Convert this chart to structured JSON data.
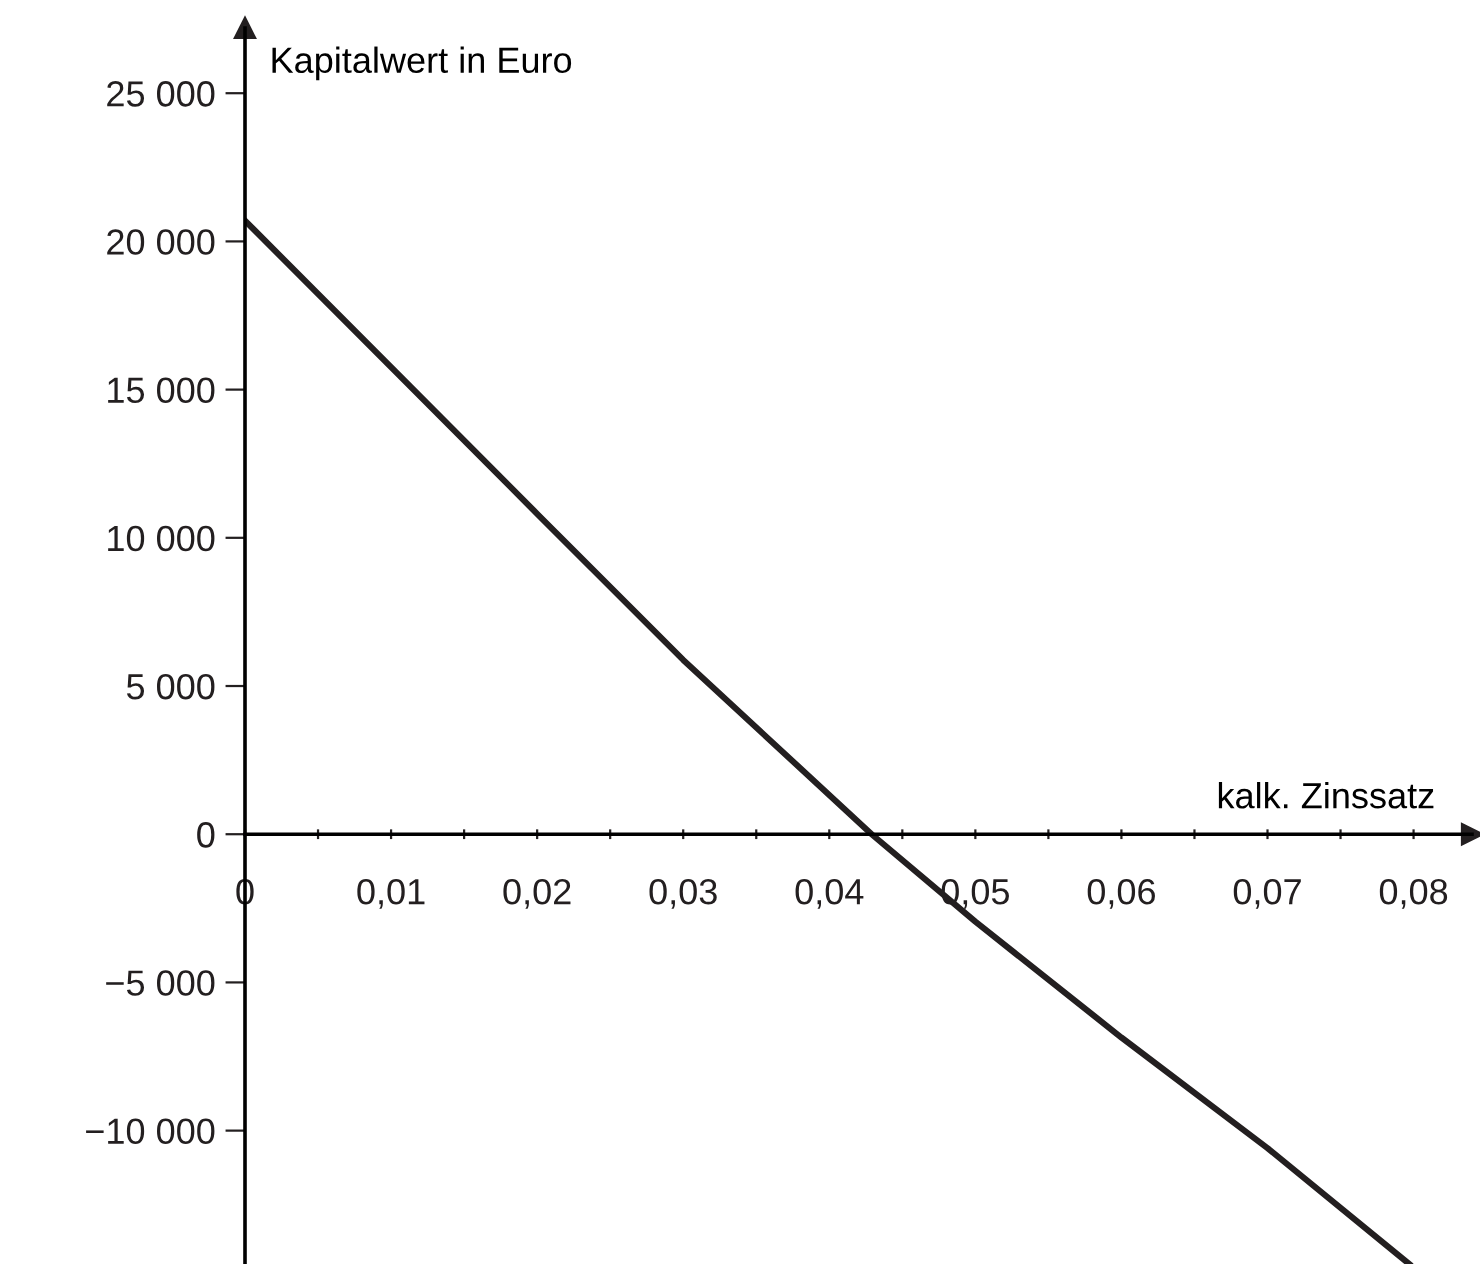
{
  "chart_data": {
    "type": "line",
    "xlabel": "kalk. Zinssatz",
    "ylabel": "Kapitalwert in Euro",
    "series": [
      {
        "color": "#231f20",
        "x": [
          0,
          0.01,
          0.02,
          0.03,
          0.0429,
          0.05,
          0.06,
          0.07,
          0.0797
        ],
        "values": [
          20700,
          15760,
          10810,
          5880,
          0,
          -2950,
          -6860,
          -10590,
          -14500
        ]
      }
    ],
    "xlim": [
      0,
      0.084
    ],
    "ylim": [
      -14500,
      27200
    ],
    "xticks": [
      {
        "value": 0,
        "label": "0"
      },
      {
        "value": 0.005,
        "label": null
      },
      {
        "value": 0.01,
        "label": "0,01"
      },
      {
        "value": 0.015,
        "label": null
      },
      {
        "value": 0.02,
        "label": "0,02"
      },
      {
        "value": 0.025,
        "label": null
      },
      {
        "value": 0.03,
        "label": "0,03"
      },
      {
        "value": 0.035,
        "label": null
      },
      {
        "value": 0.04,
        "label": "0,04"
      },
      {
        "value": 0.045,
        "label": null
      },
      {
        "value": 0.05,
        "label": "0,05"
      },
      {
        "value": 0.055,
        "label": null
      },
      {
        "value": 0.06,
        "label": "0,06"
      },
      {
        "value": 0.065,
        "label": null
      },
      {
        "value": 0.07,
        "label": "0,07"
      },
      {
        "value": 0.075,
        "label": null
      },
      {
        "value": 0.08,
        "label": "0,08"
      }
    ],
    "yticks": [
      {
        "value": -10000,
        "label": "−10 000"
      },
      {
        "value": -5000,
        "label": "−5 000"
      },
      {
        "value": 0,
        "label": "0"
      },
      {
        "value": 5000,
        "label": "5 000"
      },
      {
        "value": 10000,
        "label": "10 000"
      },
      {
        "value": 15000,
        "label": "15 000"
      },
      {
        "value": 20000,
        "label": "20 000"
      },
      {
        "value": 25000,
        "label": "25 000"
      }
    ],
    "grid": false,
    "legend": false,
    "marker": "none",
    "line_style": "solid"
  }
}
